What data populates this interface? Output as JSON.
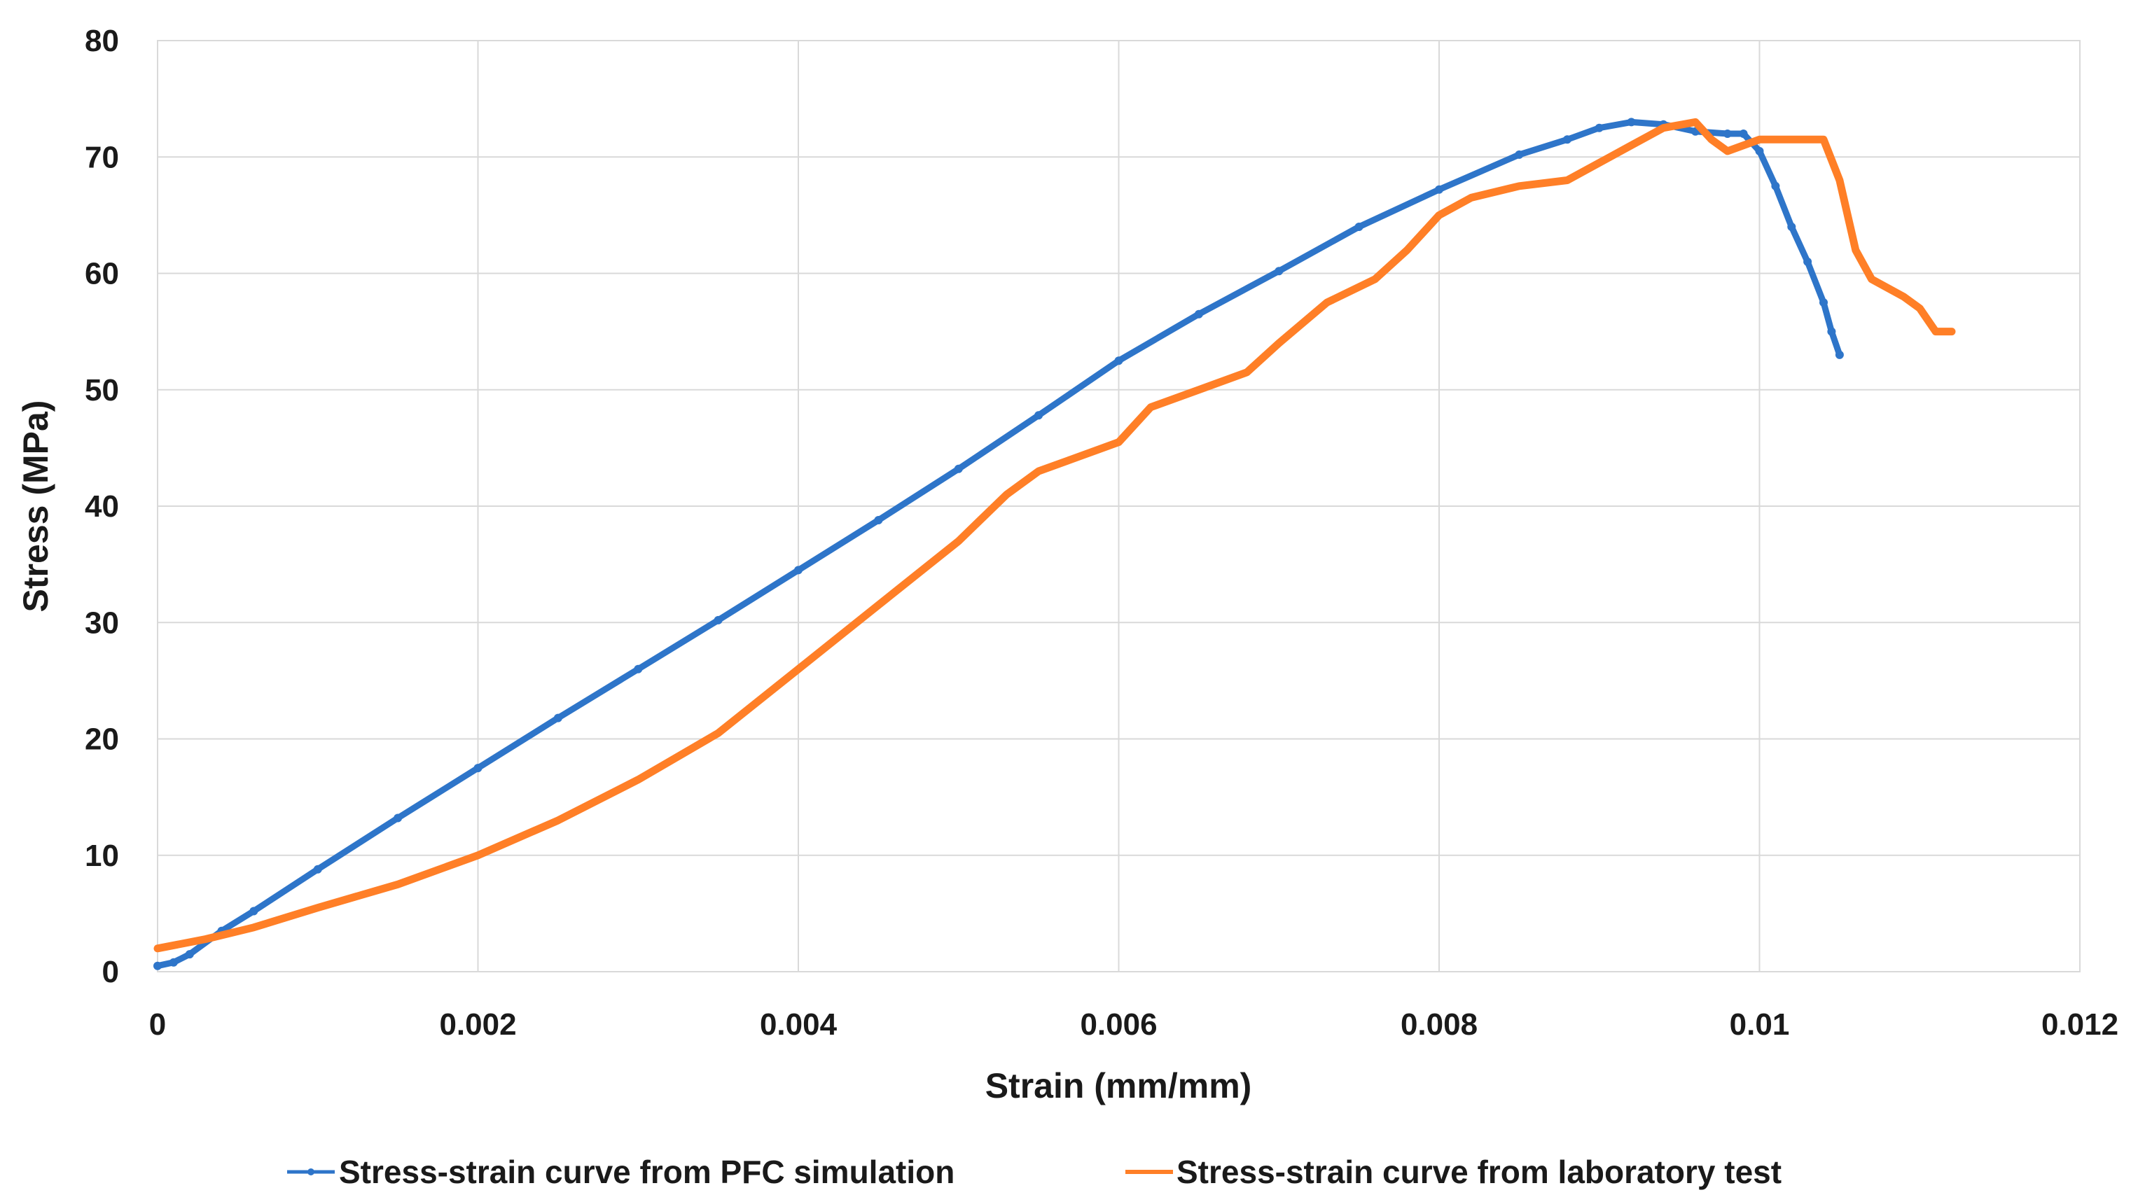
{
  "chart_data": {
    "type": "line",
    "title": "",
    "xlabel": "Strain (mm/mm)",
    "ylabel": "Stress (MPa)",
    "xlim": [
      0,
      0.012
    ],
    "ylim": [
      0,
      80
    ],
    "x_ticks": [
      0,
      0.002,
      0.004,
      0.006,
      0.008,
      0.01,
      0.012
    ],
    "x_tick_labels": [
      "0",
      "0.002",
      "0.004",
      "0.006",
      "0.008",
      "0.01",
      "0.012"
    ],
    "y_ticks": [
      0,
      10,
      20,
      30,
      40,
      50,
      60,
      70,
      80
    ],
    "y_tick_labels": [
      "0",
      "10",
      "20",
      "30",
      "40",
      "50",
      "60",
      "70",
      "80"
    ],
    "grid": true,
    "legend_position": "bottom",
    "series": [
      {
        "name": "Stress-strain curve from PFC simulation",
        "color": "#2e75c9",
        "marker": "dot",
        "x": [
          0,
          0.0001,
          0.0002,
          0.0004,
          0.0006,
          0.001,
          0.0015,
          0.002,
          0.0025,
          0.003,
          0.0035,
          0.004,
          0.0045,
          0.005,
          0.0055,
          0.006,
          0.0065,
          0.007,
          0.0075,
          0.008,
          0.0085,
          0.0088,
          0.009,
          0.0092,
          0.0094,
          0.0096,
          0.0098,
          0.0099,
          0.01,
          0.0101,
          0.0102,
          0.0103,
          0.0104,
          0.01045,
          0.0105
        ],
        "y": [
          0.5,
          0.8,
          1.5,
          3.5,
          5.2,
          8.8,
          13.2,
          17.5,
          21.8,
          26.0,
          30.2,
          34.5,
          38.8,
          43.2,
          47.8,
          52.5,
          56.5,
          60.2,
          64.0,
          67.2,
          70.2,
          71.5,
          72.5,
          73.0,
          72.8,
          72.2,
          72.0,
          72.0,
          70.5,
          67.5,
          64.0,
          61.0,
          57.5,
          55.0,
          53.0
        ]
      },
      {
        "name": "Stress-strain curve from laboratory test",
        "color": "#ff7f27",
        "marker": "none",
        "x": [
          0,
          0.0003,
          0.0006,
          0.001,
          0.0015,
          0.002,
          0.0025,
          0.003,
          0.0035,
          0.004,
          0.0045,
          0.005,
          0.0053,
          0.0055,
          0.0057,
          0.006,
          0.0062,
          0.0065,
          0.0068,
          0.007,
          0.0073,
          0.0076,
          0.0078,
          0.008,
          0.0082,
          0.0085,
          0.0088,
          0.009,
          0.0092,
          0.0094,
          0.0096,
          0.0097,
          0.0098,
          0.01,
          0.0102,
          0.0104,
          0.0105,
          0.0106,
          0.0107,
          0.0109,
          0.011,
          0.0111,
          0.0112
        ],
        "y": [
          2.0,
          2.8,
          3.8,
          5.5,
          7.5,
          10.0,
          13.0,
          16.5,
          20.5,
          26.0,
          31.5,
          37.0,
          41.0,
          43.0,
          44.0,
          45.5,
          48.5,
          50.0,
          51.5,
          54.0,
          57.5,
          59.5,
          62.0,
          65.0,
          66.5,
          67.5,
          68.0,
          69.5,
          71.0,
          72.5,
          73.0,
          71.5,
          70.5,
          71.5,
          71.5,
          71.5,
          68.0,
          62.0,
          59.5,
          58.0,
          57.0,
          55.0,
          55.0
        ]
      }
    ]
  }
}
